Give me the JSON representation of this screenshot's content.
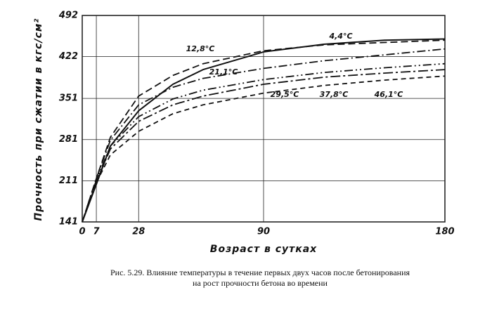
{
  "chart_data": {
    "type": "line",
    "y_label": "Прочность при сжатии в кгс/см²",
    "x_label": "Возраст в сутках",
    "caption": [
      "Рис. 5.29. Влияние температуры в течение первых двух часов после бетонирования",
      "на рост прочности бетона во времени"
    ],
    "x": [
      0,
      7,
      14,
      28,
      45,
      60,
      90,
      120,
      150,
      180
    ],
    "xlim": [
      0,
      180
    ],
    "xticks": [
      0,
      7,
      28,
      90,
      180
    ],
    "ylim": [
      141,
      492
    ],
    "yticks": [
      141,
      211,
      281,
      351,
      422,
      492
    ],
    "grid": true,
    "series": [
      {
        "name": "4,4°C",
        "color": "#111111",
        "values": [
          141,
          205,
          270,
          330,
          375,
          400,
          430,
          443,
          450,
          452
        ]
      },
      {
        "name": "12,8°C",
        "color": "#111111",
        "values": [
          141,
          215,
          285,
          355,
          390,
          410,
          432,
          442,
          446,
          450
        ]
      },
      {
        "name": "21,1°C",
        "color": "#111111",
        "values": [
          141,
          215,
          280,
          340,
          370,
          385,
          402,
          415,
          425,
          435
        ]
      },
      {
        "name": "29,5°C",
        "color": "#111111",
        "values": [
          141,
          212,
          270,
          320,
          350,
          365,
          383,
          395,
          403,
          410
        ]
      },
      {
        "name": "37,8°C",
        "color": "#111111",
        "values": [
          141,
          210,
          265,
          312,
          340,
          355,
          375,
          387,
          394,
          400
        ]
      },
      {
        "name": "46,1°C",
        "color": "#111111",
        "values": [
          141,
          208,
          255,
          295,
          325,
          340,
          360,
          373,
          382,
          389
        ]
      }
    ]
  }
}
